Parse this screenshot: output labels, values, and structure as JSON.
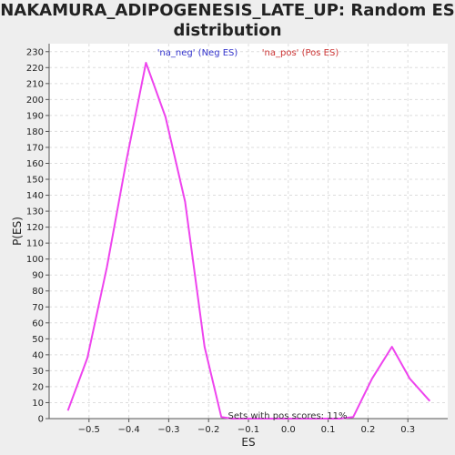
{
  "chart_data": {
    "type": "line",
    "title_line1": "NAKAMURA_ADIPOGENESIS_LATE_UP: Random ES",
    "title_line2": "distribution",
    "xlabel": "ES",
    "ylabel": "P(ES)",
    "xlim": [
      -0.6,
      0.4
    ],
    "ylim": [
      0,
      235
    ],
    "x_ticks": [
      -0.5,
      -0.4,
      -0.3,
      -0.2,
      -0.1,
      0.0,
      0.1,
      0.2,
      0.3
    ],
    "x_tick_labels": [
      "−0.5",
      "−0.4",
      "−0.3",
      "−0.2",
      "−0.1",
      "0.0",
      "0.1",
      "0.2",
      "0.3"
    ],
    "y_ticks": [
      0,
      10,
      20,
      30,
      40,
      50,
      60,
      70,
      80,
      90,
      100,
      110,
      120,
      130,
      140,
      150,
      160,
      170,
      180,
      190,
      200,
      210,
      220,
      230
    ],
    "grid": true,
    "legend": [
      {
        "label": "'na_neg' (Neg ES)",
        "color": "#3333cc"
      },
      {
        "label": "'na_pos' (Pos ES)",
        "color": "#cc3333"
      }
    ],
    "series": [
      {
        "color": "#ee44ee",
        "x": [
          -0.553,
          -0.504,
          -0.455,
          -0.406,
          -0.357,
          -0.308,
          -0.259,
          -0.21,
          -0.168,
          -0.142,
          -0.1,
          -0.05,
          0.0,
          0.05,
          0.1,
          0.13,
          0.163,
          0.21,
          0.26,
          0.305,
          0.355
        ],
        "y": [
          5,
          38,
          95,
          162,
          223,
          189,
          136,
          45,
          1,
          0,
          0,
          0,
          0,
          0,
          0,
          0,
          1,
          25,
          45,
          25,
          11
        ]
      }
    ],
    "annotation": "Sets with pos scores: 11%"
  }
}
